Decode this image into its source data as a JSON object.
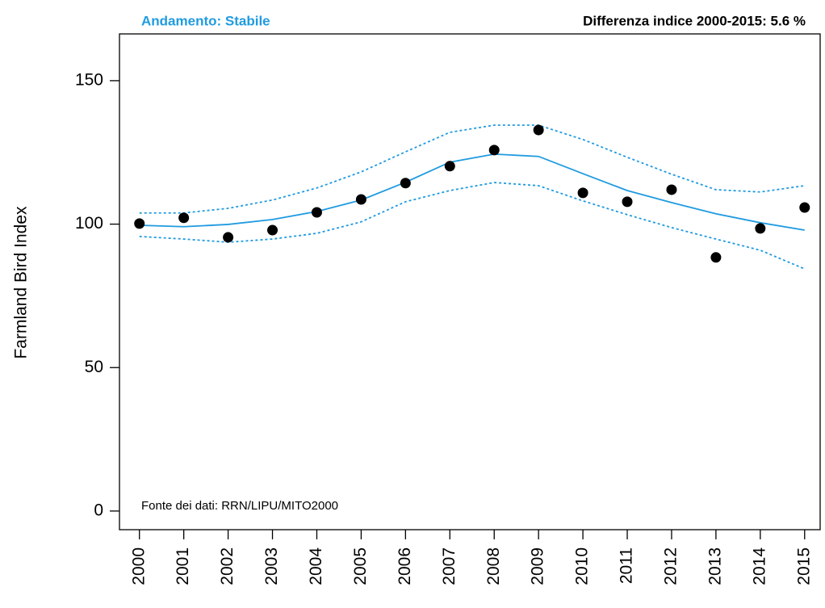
{
  "chart_data": {
    "type": "line",
    "title": "Andamento: Stabile",
    "subtitle": "Differenza indice 2000-2015: 5.6 %",
    "annotation": "Fonte dei dati: RRN/LIPU/MITO2000",
    "y_label": "Farmland Bird Index",
    "x": [
      2000,
      2001,
      2002,
      2003,
      2004,
      2005,
      2006,
      2007,
      2008,
      2009,
      2010,
      2011,
      2012,
      2013,
      2014,
      2015
    ],
    "series": [
      {
        "color": "#1f9be0",
        "style": "dotted",
        "values": [
          103.9,
          103.9,
          105.5,
          108.4,
          112.6,
          118.2,
          125.2,
          132.0,
          134.5,
          134.5,
          129.5,
          123.3,
          117.4,
          112.0,
          111.2,
          113.4
        ]
      },
      {
        "color": "#1f9be0",
        "style": "dotted",
        "values": [
          95.7,
          94.8,
          93.7,
          94.8,
          96.8,
          100.8,
          107.8,
          111.7,
          114.5,
          113.4,
          108.1,
          103.3,
          98.8,
          94.8,
          90.9,
          84.4
        ]
      },
      {
        "color": "#1f9be0",
        "style": "solid",
        "values": [
          99.6,
          99.1,
          99.9,
          101.6,
          104.4,
          108.4,
          114.6,
          121.6,
          124.4,
          123.6,
          117.6,
          111.7,
          107.5,
          103.6,
          100.5,
          97.9
        ]
      },
      {
        "color": "#000000",
        "style": "points",
        "values": [
          100.2,
          102.2,
          95.4,
          97.9,
          104.1,
          108.6,
          114.3,
          120.2,
          125.8,
          132.8,
          110.9,
          107.8,
          112.0,
          88.4,
          98.5,
          105.8
        ]
      }
    ],
    "xlim": [
      1999.55,
      2015.35
    ],
    "xticks": [
      2000,
      2001,
      2002,
      2003,
      2004,
      2005,
      2006,
      2007,
      2008,
      2009,
      2010,
      2011,
      2012,
      2013,
      2014,
      2015
    ],
    "ylim": [
      -6.5,
      166.3
    ],
    "yticks": [
      0,
      50,
      100,
      150
    ],
    "title_color": "#1f9be0"
  }
}
